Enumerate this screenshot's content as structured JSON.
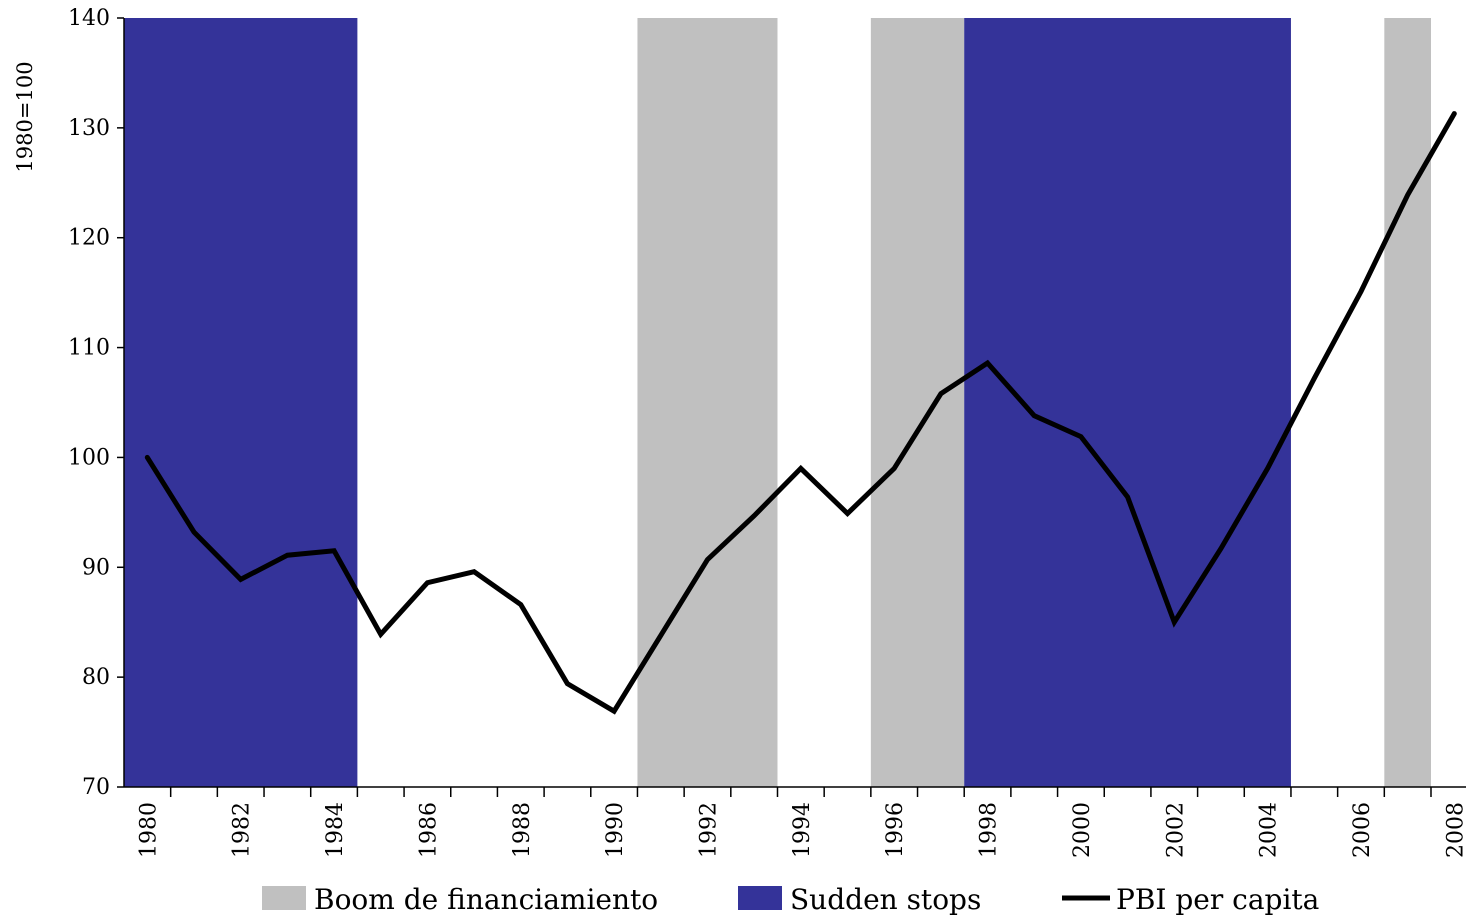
{
  "chart_data": {
    "type": "line",
    "ylabel": "1980=100",
    "ylim": [
      70,
      140
    ],
    "yticks": [
      70,
      80,
      90,
      100,
      110,
      120,
      130,
      140
    ],
    "xticks": [
      1980,
      1982,
      1984,
      1986,
      1988,
      1990,
      1992,
      1994,
      1996,
      1998,
      2000,
      2002,
      2004,
      2006,
      2008
    ],
    "grid": false,
    "legend_position": "bottom",
    "series": [
      {
        "name": "PBI per capita",
        "color": "#000000",
        "x": [
          1980,
          1981,
          1982,
          1983,
          1984,
          1985,
          1986,
          1987,
          1988,
          1989,
          1990,
          1991,
          1992,
          1993,
          1994,
          1995,
          1996,
          1997,
          1998,
          1999,
          2000,
          2001,
          2002,
          2003,
          2004,
          2005,
          2006,
          2007,
          2008
        ],
        "values": [
          100,
          93.2,
          88.9,
          91.1,
          91.5,
          83.9,
          88.6,
          89.6,
          86.6,
          79.4,
          76.9,
          83.8,
          90.7,
          94.7,
          99.0,
          94.9,
          99.0,
          105.8,
          108.6,
          103.8,
          101.9,
          96.4,
          85.0,
          91.7,
          99.0,
          107.2,
          115.1,
          123.9,
          131.3
        ]
      }
    ],
    "shaded_periods": [
      {
        "type": "Sudden stops",
        "start": 1980,
        "end": 1984
      },
      {
        "type": "Boom de financiamiento",
        "start": 1991,
        "end": 1993
      },
      {
        "type": "Boom de financiamiento",
        "start": 1996,
        "end": 1997
      },
      {
        "type": "Sudden stops",
        "start": 1998,
        "end": 2004
      },
      {
        "type": "Boom de financiamiento",
        "start": 2007,
        "end": 2007
      }
    ],
    "legend": [
      {
        "label": "Boom de financiamiento",
        "kind": "box",
        "color": "#c0c0c0"
      },
      {
        "label": "Sudden stops",
        "kind": "box",
        "color": "#343399"
      },
      {
        "label": "PBI per capita",
        "kind": "line",
        "color": "#000000"
      }
    ]
  }
}
